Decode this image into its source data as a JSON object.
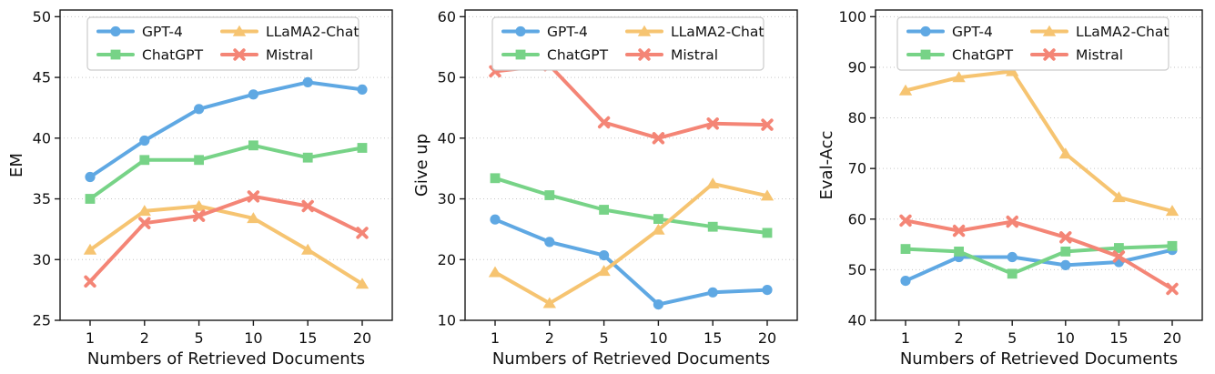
{
  "figure": {
    "xlabel": "Numbers of Retrieved Documents",
    "categories": [
      "1",
      "2",
      "5",
      "10",
      "15",
      "20"
    ],
    "legend_labels": [
      "GPT-4",
      "ChatGPT",
      "LLaMA2-Chat",
      "Mistral"
    ],
    "colors": {
      "gpt4_blue": "#5fa8e3",
      "chatgpt_green": "#77d387",
      "llama2_yellow": "#f6c471",
      "mistral_red": "#f48576",
      "gridline_gray": "#c6c6c6",
      "axis_black": "#1a1a1a",
      "legend_border": "#cccccc"
    }
  },
  "chart_data": [
    {
      "type": "line",
      "title": "",
      "xlabel": "Numbers of Retrieved Documents",
      "ylabel": "EM",
      "categories": [
        "1",
        "2",
        "5",
        "10",
        "15",
        "20"
      ],
      "ylim": [
        25,
        50
      ],
      "yticks": [
        25,
        30,
        35,
        40,
        45,
        50
      ],
      "grid": "horizontal-dotted",
      "legend_position": "upper-left",
      "series": [
        {
          "name": "GPT-4",
          "color": "#5fa8e3",
          "marker": "circle",
          "values": [
            36.8,
            39.8,
            42.4,
            43.6,
            44.6,
            44.0
          ]
        },
        {
          "name": "ChatGPT",
          "color": "#77d387",
          "marker": "square",
          "values": [
            35.0,
            38.2,
            38.2,
            39.4,
            38.4,
            39.2
          ]
        },
        {
          "name": "LLaMA2-Chat",
          "color": "#f6c471",
          "marker": "triangle",
          "values": [
            30.8,
            34.0,
            34.4,
            33.4,
            30.8,
            28.0
          ]
        },
        {
          "name": "Mistral",
          "color": "#f48576",
          "marker": "x",
          "values": [
            28.2,
            33.0,
            33.6,
            35.2,
            34.4,
            32.2
          ]
        }
      ]
    },
    {
      "type": "line",
      "title": "",
      "xlabel": "Numbers of Retrieved Documents",
      "ylabel": "Give up",
      "categories": [
        "1",
        "2",
        "5",
        "10",
        "15",
        "20"
      ],
      "ylim": [
        10,
        60
      ],
      "yticks": [
        10,
        20,
        30,
        40,
        50,
        60
      ],
      "grid": "horizontal-dotted",
      "legend_position": "upper-left",
      "series": [
        {
          "name": "GPT-4",
          "color": "#5fa8e3",
          "marker": "circle",
          "values": [
            26.6,
            22.9,
            20.7,
            12.6,
            14.6,
            15.0
          ]
        },
        {
          "name": "ChatGPT",
          "color": "#77d387",
          "marker": "square",
          "values": [
            33.4,
            30.6,
            28.2,
            26.7,
            25.4,
            24.4
          ]
        },
        {
          "name": "LLaMA2-Chat",
          "color": "#f6c471",
          "marker": "triangle",
          "values": [
            17.9,
            12.8,
            18.1,
            24.9,
            32.5,
            30.5
          ]
        },
        {
          "name": "Mistral",
          "color": "#f48576",
          "marker": "x",
          "values": [
            51.0,
            52.0,
            42.6,
            40.0,
            42.4,
            42.2
          ]
        }
      ]
    },
    {
      "type": "line",
      "title": "",
      "xlabel": "Numbers of Retrieved Documents",
      "ylabel": "Eval-Acc",
      "categories": [
        "1",
        "2",
        "5",
        "10",
        "15",
        "20"
      ],
      "ylim": [
        40,
        100
      ],
      "yticks": [
        40,
        50,
        60,
        70,
        80,
        90,
        100
      ],
      "grid": "horizontal-dotted",
      "legend_position": "upper-left",
      "series": [
        {
          "name": "GPT-4",
          "color": "#5fa8e3",
          "marker": "circle",
          "values": [
            47.8,
            52.5,
            52.5,
            50.9,
            51.5,
            53.9
          ]
        },
        {
          "name": "ChatGPT",
          "color": "#77d387",
          "marker": "square",
          "values": [
            54.1,
            53.6,
            49.2,
            53.6,
            54.3,
            54.7
          ]
        },
        {
          "name": "LLaMA2-Chat",
          "color": "#f6c471",
          "marker": "triangle",
          "values": [
            85.4,
            88.0,
            89.2,
            72.9,
            64.3,
            61.6
          ]
        },
        {
          "name": "Mistral",
          "color": "#f48576",
          "marker": "x",
          "values": [
            59.7,
            57.7,
            59.5,
            56.4,
            52.6,
            46.2
          ]
        }
      ]
    }
  ]
}
